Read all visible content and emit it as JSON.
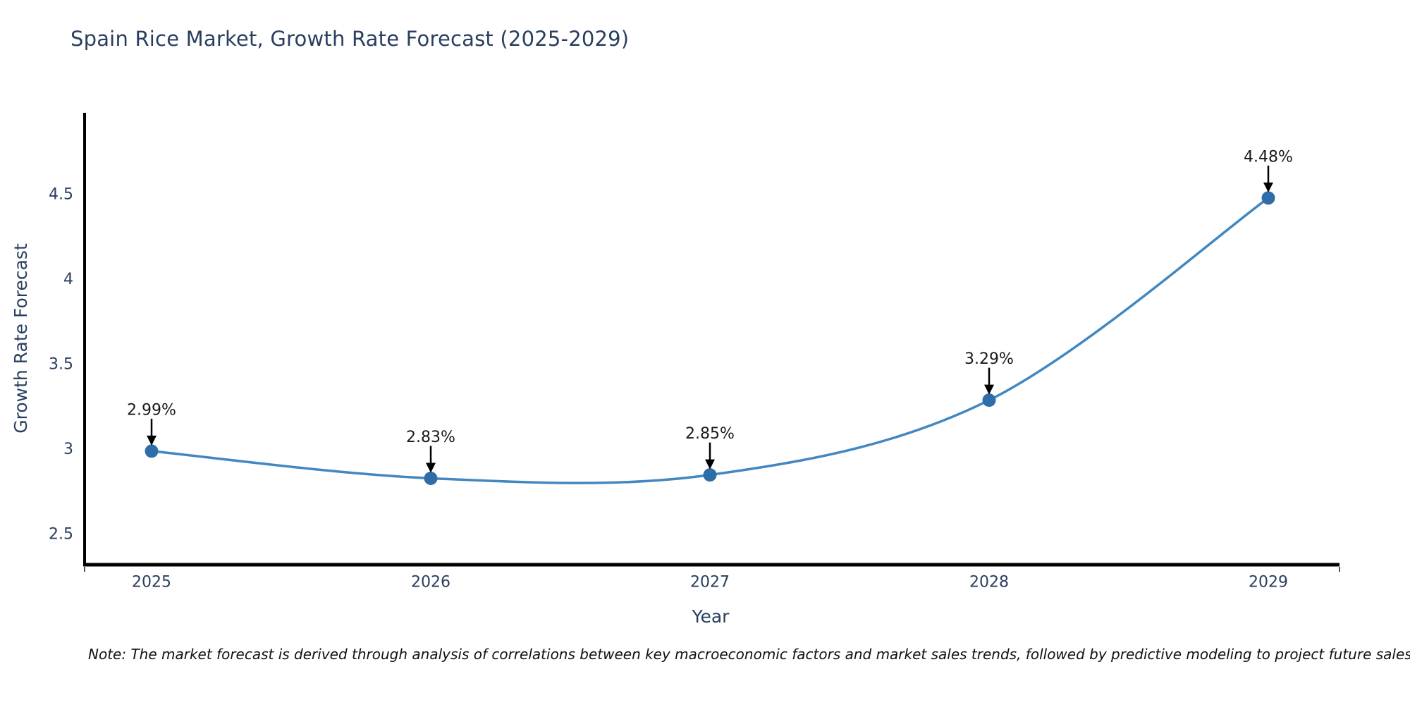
{
  "title": "Spain Rice Market, Growth Rate Forecast (2025-2029)",
  "footnote": "Note: The market forecast is derived through analysis of correlations between key macroeconomic factors and market sales trends, followed by predictive modeling to project future sales",
  "chart_data": {
    "type": "line",
    "title": "Spain Rice Market, Growth Rate Forecast (2025-2029)",
    "xlabel": "Year",
    "ylabel": "Growth Rate Forecast",
    "categories": [
      2025,
      2026,
      2027,
      2028,
      2029
    ],
    "values": [
      2.99,
      2.83,
      2.85,
      3.29,
      4.48
    ],
    "point_labels": [
      "2.99%",
      "2.83%",
      "2.85%",
      "3.29%",
      "4.48%"
    ],
    "yticks": [
      2.5,
      3,
      3.5,
      4,
      4.5
    ],
    "ylim": [
      2.33,
      4.98
    ],
    "line_shape": "spline",
    "grid": false,
    "legend": "none",
    "colors": {
      "line": "#4287c0",
      "marker": "#2f6da8",
      "axis_line": "#000000",
      "axis_text": "#2a3f5f",
      "annotation_text": "#1a1a1a",
      "arrow": "#000000"
    }
  }
}
